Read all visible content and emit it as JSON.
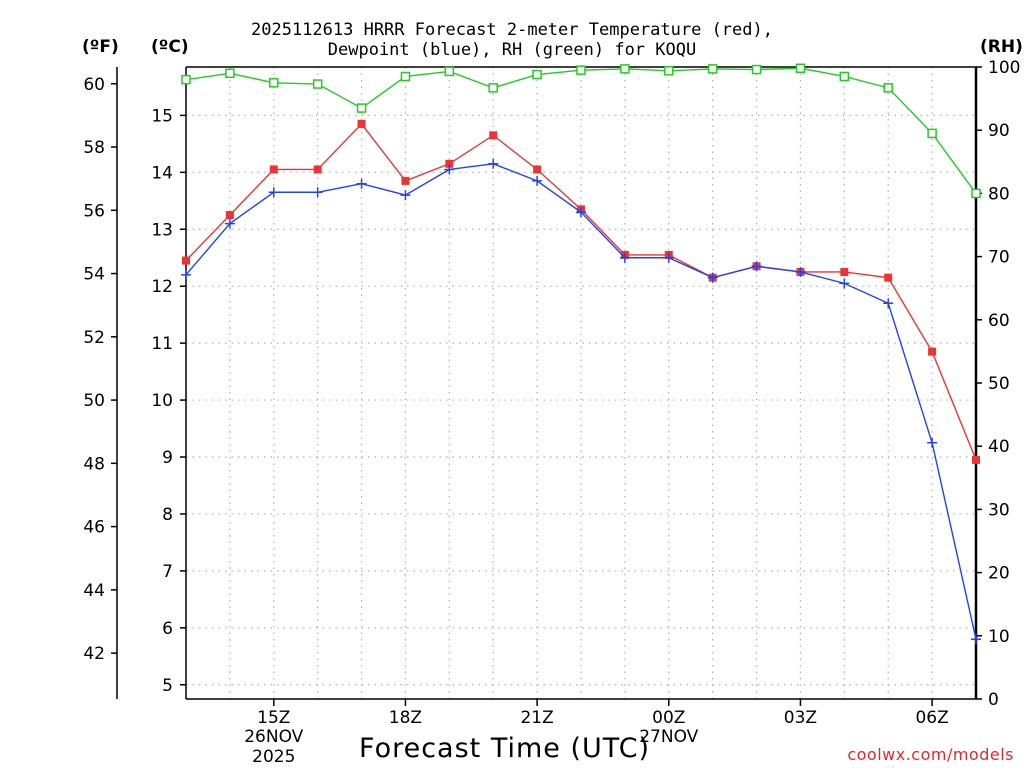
{
  "chart_data": {
    "type": "line",
    "title_line1": "2025112613 HRRR Forecast 2-meter Temperature (red),",
    "title_line2": "Dewpoint (blue), RH (green) for KOQU",
    "left_outer_axis_label": "(ºF)",
    "left_inner_axis_label": "(ºC)",
    "right_axis_label": "(RH)",
    "xlabel": "Forecast Time (UTC)",
    "credit": "coolwx.com/models",
    "x_hours_since_13z": [
      0,
      1,
      2,
      3,
      4,
      5,
      6,
      7,
      8,
      9,
      10,
      11,
      12,
      13,
      14,
      15,
      16,
      17,
      18
    ],
    "x_ticks": [
      {
        "hour": 2,
        "label": "15Z"
      },
      {
        "hour": 5,
        "label": "18Z"
      },
      {
        "hour": 8,
        "label": "21Z"
      },
      {
        "hour": 11,
        "label": "00Z"
      },
      {
        "hour": 14,
        "label": "03Z"
      },
      {
        "hour": 17,
        "label": "06Z"
      }
    ],
    "date_labels": [
      {
        "hour": 2,
        "lines": [
          "26NOV",
          "2025"
        ]
      },
      {
        "hour": 11,
        "lines": [
          "27NOV"
        ]
      }
    ],
    "celsius_ylim": [
      4.75,
      15.85
    ],
    "celsius_ticks": [
      5,
      6,
      7,
      8,
      9,
      10,
      11,
      12,
      13,
      14,
      15
    ],
    "fahrenheit_ticks": [
      42,
      44,
      46,
      48,
      50,
      52,
      54,
      56,
      58,
      60
    ],
    "rh_ylim": [
      0,
      100
    ],
    "rh_ticks": [
      0,
      10,
      20,
      30,
      40,
      50,
      60,
      70,
      80,
      90,
      100
    ],
    "series": [
      {
        "name": "Temperature",
        "units": "C",
        "color": "#ee3333",
        "marker": "filled-square",
        "values": [
          12.45,
          13.25,
          14.05,
          14.05,
          14.85,
          13.85,
          14.15,
          14.65,
          14.05,
          13.35,
          12.55,
          12.55,
          12.15,
          12.35,
          12.25,
          12.25,
          12.15,
          10.85,
          8.95
        ]
      },
      {
        "name": "Dewpoint",
        "units": "C",
        "color": "#2244ee",
        "marker": "plus",
        "values": [
          12.2,
          13.1,
          13.65,
          13.65,
          13.8,
          13.6,
          14.05,
          14.15,
          13.85,
          13.3,
          12.5,
          12.5,
          12.15,
          12.35,
          12.25,
          12.05,
          11.7,
          9.25,
          5.8
        ]
      },
      {
        "name": "RH",
        "units": "%",
        "color": "#22cc22",
        "marker": "open-square",
        "values": [
          98,
          99,
          97.5,
          97.3,
          93.5,
          98.5,
          99.3,
          96.7,
          98.8,
          99.5,
          99.7,
          99.4,
          99.7,
          99.6,
          99.8,
          98.5,
          96.7,
          89.5,
          80
        ]
      }
    ]
  }
}
